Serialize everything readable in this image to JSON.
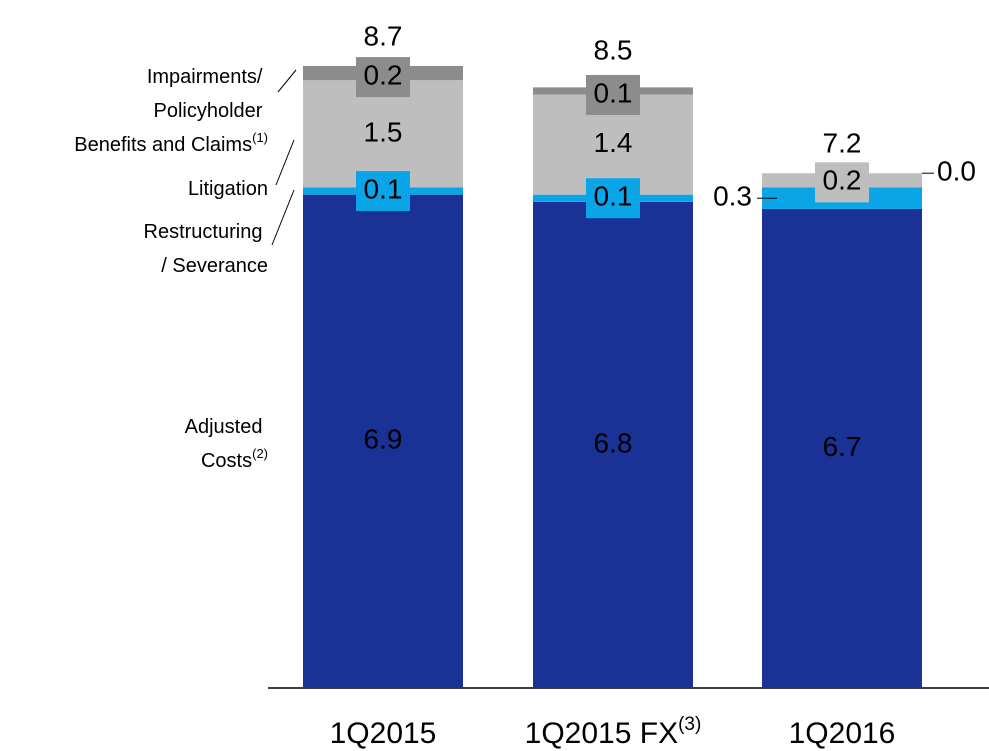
{
  "chart_data": {
    "type": "stacked_bar",
    "categories": [
      "1Q2015",
      "1Q2015 FX",
      "1Q2016"
    ],
    "category_notes": [
      null,
      "(3)",
      null
    ],
    "totals": [
      8.7,
      8.5,
      7.2
    ],
    "series": [
      {
        "name": "Adjusted Costs",
        "note": "(2)",
        "color": "#1a3296",
        "values": [
          6.9,
          6.8,
          6.7
        ],
        "value_labels": [
          "6.9",
          "6.8",
          "6.7"
        ]
      },
      {
        "name": "Restructuring / Severance",
        "color": "#0aa5e6",
        "values": [
          0.1,
          0.1,
          0.3
        ],
        "value_labels": [
          "0.1",
          "0.1",
          "0.3"
        ]
      },
      {
        "name": "Litigation",
        "color": "#bebebe",
        "values": [
          1.5,
          1.4,
          0.2
        ],
        "value_labels": [
          "1.5",
          "1.4",
          "0.2"
        ]
      },
      {
        "name": "Impairments/ Policyholder Benefits and Claims",
        "note": "(1)",
        "color": "#8c8c8c",
        "values": [
          0.2,
          0.1,
          0.0
        ],
        "value_labels": [
          "0.2",
          "0.1",
          "0.0"
        ]
      }
    ]
  }
}
